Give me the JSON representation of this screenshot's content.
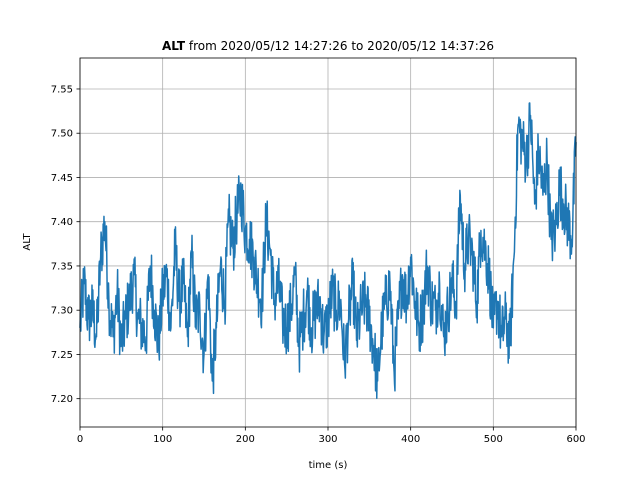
{
  "chart_data": {
    "type": "line",
    "title_bold": "ALT",
    "title_rest": " from 2020/05/12 14:27:26 to 2020/05/12 14:37:26",
    "xlabel": "time (s)",
    "ylabel": "ALT",
    "xlim": [
      0,
      600
    ],
    "ylim": [
      7.168,
      7.585
    ],
    "xticks": [
      0,
      100,
      200,
      300,
      400,
      500,
      600
    ],
    "xtick_labels": [
      "0",
      "100",
      "200",
      "300",
      "400",
      "500",
      "600"
    ],
    "yticks": [
      7.2,
      7.25,
      7.3,
      7.35,
      7.4,
      7.45,
      7.5,
      7.55
    ],
    "ytick_labels": [
      "7.20",
      "7.25",
      "7.30",
      "7.35",
      "7.40",
      "7.45",
      "7.50",
      "7.55"
    ],
    "grid": true,
    "color": "#1f77b4",
    "series": [
      {
        "x": [
          0,
          5,
          10,
          15,
          20,
          25,
          30,
          35,
          40,
          45,
          50,
          55,
          60,
          65,
          70,
          75,
          80,
          85,
          90,
          95,
          100,
          105,
          110,
          115,
          120,
          125,
          130,
          135,
          140,
          145,
          150,
          155,
          160,
          165,
          170,
          175,
          180,
          185,
          190,
          195,
          200,
          205,
          210,
          215,
          220,
          225,
          230,
          235,
          240,
          245,
          250,
          255,
          260,
          265,
          270,
          275,
          280,
          285,
          290,
          295,
          300,
          305,
          310,
          315,
          320,
          325,
          330,
          335,
          340,
          345,
          350,
          355,
          360,
          365,
          370,
          375,
          380,
          385,
          390,
          395,
          400,
          405,
          410,
          415,
          420,
          425,
          430,
          435,
          440,
          445,
          450,
          455,
          460,
          465,
          470,
          475,
          480,
          485,
          490,
          495,
          500,
          505,
          510,
          515,
          520,
          525,
          530,
          535,
          540,
          545,
          550,
          555,
          560,
          565,
          570,
          575,
          580,
          585,
          590,
          595,
          600
        ],
        "values": [
          7.28,
          7.33,
          7.29,
          7.3,
          7.27,
          7.36,
          7.4,
          7.31,
          7.27,
          7.32,
          7.26,
          7.29,
          7.31,
          7.34,
          7.29,
          7.28,
          7.27,
          7.35,
          7.3,
          7.26,
          7.32,
          7.34,
          7.28,
          7.37,
          7.31,
          7.33,
          7.27,
          7.36,
          7.29,
          7.3,
          7.25,
          7.34,
          7.22,
          7.28,
          7.35,
          7.31,
          7.4,
          7.37,
          7.41,
          7.43,
          7.39,
          7.38,
          7.36,
          7.33,
          7.31,
          7.4,
          7.37,
          7.31,
          7.33,
          7.29,
          7.28,
          7.3,
          7.34,
          7.26,
          7.29,
          7.32,
          7.28,
          7.3,
          7.31,
          7.27,
          7.29,
          7.32,
          7.3,
          7.31,
          7.24,
          7.29,
          7.33,
          7.27,
          7.3,
          7.31,
          7.29,
          7.26,
          7.22,
          7.28,
          7.31,
          7.33,
          7.23,
          7.29,
          7.34,
          7.31,
          7.36,
          7.31,
          7.28,
          7.3,
          7.35,
          7.31,
          7.3,
          7.33,
          7.27,
          7.3,
          7.33,
          7.31,
          7.43,
          7.35,
          7.38,
          7.36,
          7.31,
          7.39,
          7.37,
          7.34,
          7.28,
          7.31,
          7.27,
          7.29,
          7.26,
          7.36,
          7.51,
          7.49,
          7.47,
          7.52,
          7.42,
          7.48,
          7.43,
          7.47,
          7.38,
          7.39,
          7.44,
          7.42,
          7.4,
          7.38,
          7.49
        ]
      }
    ]
  }
}
